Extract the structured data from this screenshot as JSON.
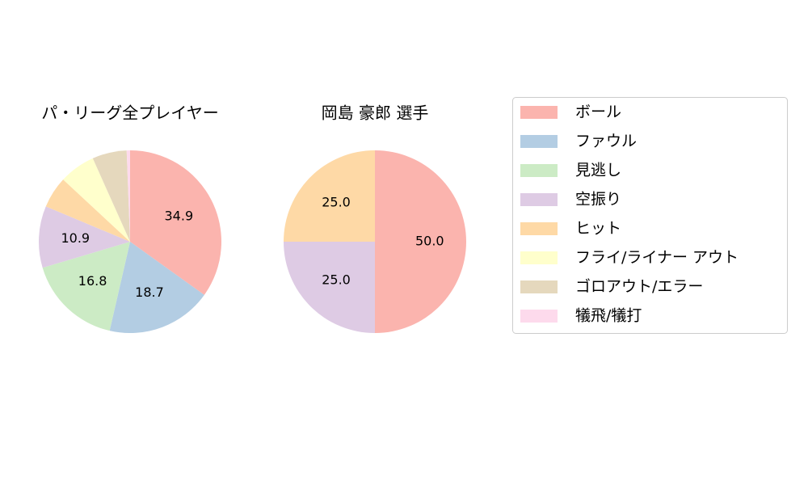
{
  "chart_data": [
    {
      "type": "pie",
      "title": "パ・リーグ全プレイヤー",
      "categories": [
        "ボール",
        "ファウル",
        "見逃し",
        "空振り",
        "ヒット",
        "フライ/ライナー アウト",
        "ゴロアウト/エラー",
        "犠飛/犠打"
      ],
      "values": [
        34.9,
        18.7,
        16.8,
        10.9,
        5.6,
        6.4,
        6.1,
        0.6
      ],
      "colors": [
        "#fbb4ae",
        "#b3cde3",
        "#ccebc5",
        "#decbe4",
        "#fed9a6",
        "#ffffcc",
        "#e5d8bd",
        "#fddaec"
      ]
    },
    {
      "type": "pie",
      "title": "岡島 豪郎  選手",
      "categories": [
        "ボール",
        "ファウル",
        "見逃し",
        "空振り",
        "ヒット",
        "フライ/ライナー アウト",
        "ゴロアウト/エラー",
        "犠飛/犠打"
      ],
      "values": [
        50.0,
        0,
        0,
        25.0,
        25.0,
        0,
        0,
        0
      ],
      "value_labels": [
        "50.0",
        null,
        null,
        "25.0",
        "25.0",
        null,
        null,
        null
      ],
      "colors": [
        "#fbb4ae",
        "#b3cde3",
        "#ccebc5",
        "#decbe4",
        "#fed9a6",
        "#ffffcc",
        "#e5d8bd",
        "#fddaec"
      ]
    }
  ]
}
